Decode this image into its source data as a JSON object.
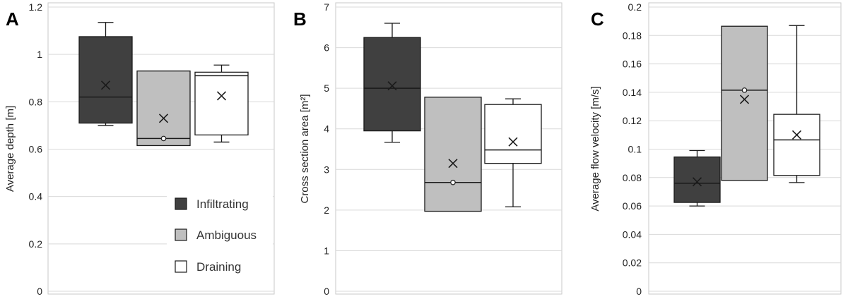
{
  "legend": {
    "entries": [
      {
        "label": "Infiltrating",
        "color": "#404040"
      },
      {
        "label": "Ambiguous",
        "color": "#bfbfbf"
      },
      {
        "label": "Draining",
        "color": "#ffffff"
      }
    ]
  },
  "colors": {
    "frame": "#c8c8c8",
    "grid": "#d9d9d9",
    "stroke": "#1a1a1a"
  },
  "chart_data": [
    {
      "type": "boxplot",
      "panel_label": "A",
      "ylabel": "Average depth [m]",
      "ylim": [
        0,
        1.2
      ],
      "yticks": [
        0,
        0.2,
        0.4,
        0.6,
        0.8,
        1,
        1.2
      ],
      "ytick_labels": [
        "0",
        "0.2",
        "0.4",
        "0.6",
        "0.8",
        "1",
        "1.2"
      ],
      "grid": true,
      "legend": "lower-right",
      "series": [
        {
          "name": "Infiltrating",
          "min": 0.7,
          "q1": 0.71,
          "median": 0.82,
          "q3": 1.075,
          "max": 1.135,
          "mean": 0.87,
          "outliers": []
        },
        {
          "name": "Ambiguous",
          "min": 0.615,
          "q1": 0.615,
          "median": 0.645,
          "q3": 0.93,
          "max": 0.93,
          "mean": 0.73,
          "outliers": [
            0.645
          ]
        },
        {
          "name": "Draining",
          "min": 0.63,
          "q1": 0.66,
          "median": 0.91,
          "q3": 0.925,
          "max": 0.955,
          "mean": 0.825,
          "outliers": []
        }
      ]
    },
    {
      "type": "boxplot",
      "panel_label": "B",
      "ylabel": "Cross section area [m²]",
      "ylim": [
        0,
        7
      ],
      "yticks": [
        0,
        1,
        2,
        3,
        4,
        5,
        6,
        7
      ],
      "ytick_labels": [
        "0",
        "1",
        "2",
        "3",
        "4",
        "5",
        "6",
        "7"
      ],
      "grid": true,
      "series": [
        {
          "name": "Infiltrating",
          "min": 3.67,
          "q1": 3.95,
          "median": 5.0,
          "q3": 6.25,
          "max": 6.6,
          "mean": 5.06,
          "outliers": []
        },
        {
          "name": "Ambiguous",
          "min": 1.97,
          "q1": 1.97,
          "median": 2.68,
          "q3": 4.78,
          "max": 4.78,
          "mean": 3.15,
          "outliers": [
            2.68
          ]
        },
        {
          "name": "Draining",
          "min": 2.08,
          "q1": 3.15,
          "median": 3.48,
          "q3": 4.6,
          "max": 4.74,
          "mean": 3.68,
          "outliers": []
        }
      ]
    },
    {
      "type": "boxplot",
      "panel_label": "C",
      "ylabel": "Average flow velocity [m/s]",
      "ylim": [
        0,
        0.2
      ],
      "yticks": [
        0,
        0.02,
        0.04,
        0.06,
        0.08,
        0.1,
        0.12,
        0.14,
        0.16,
        0.18,
        0.2
      ],
      "ytick_labels": [
        "0",
        "0.02",
        "0.04",
        "0.06",
        "0.08",
        "0.1",
        "0.12",
        "0.14",
        "0.16",
        "0.18",
        "0.2"
      ],
      "grid": true,
      "series": [
        {
          "name": "Infiltrating",
          "min": 0.06,
          "q1": 0.0625,
          "median": 0.076,
          "q3": 0.0945,
          "max": 0.099,
          "mean": 0.077,
          "outliers": []
        },
        {
          "name": "Ambiguous",
          "min": 0.078,
          "q1": 0.078,
          "median": 0.1415,
          "q3": 0.1865,
          "max": 0.1865,
          "mean": 0.135,
          "outliers": [
            0.1415
          ]
        },
        {
          "name": "Draining",
          "min": 0.0765,
          "q1": 0.0815,
          "median": 0.1065,
          "q3": 0.1245,
          "max": 0.187,
          "mean": 0.11,
          "outliers": []
        }
      ]
    }
  ]
}
